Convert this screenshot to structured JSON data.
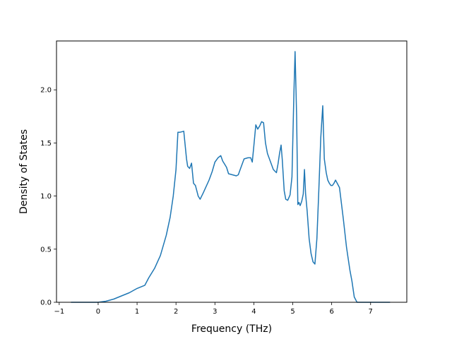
{
  "chart_data": {
    "type": "line",
    "title": "",
    "xlabel": "Frequency (THz)",
    "ylabel": "Density of States",
    "xlim": [
      -1.07,
      7.93
    ],
    "ylim": [
      0.0,
      2.46
    ],
    "xticks": [
      -1,
      0,
      1,
      2,
      3,
      4,
      5,
      6,
      7
    ],
    "xtick_labels": [
      "−1",
      "0",
      "1",
      "2",
      "3",
      "4",
      "5",
      "6",
      "7"
    ],
    "yticks": [
      0.0,
      0.5,
      1.0,
      1.5,
      2.0
    ],
    "ytick_labels": [
      "0.0",
      "0.5",
      "1.0",
      "1.5",
      "2.0"
    ],
    "grid": false,
    "line_color": "#1f77b4",
    "series": [
      {
        "x": [
          -0.7,
          -0.3,
          0.0,
          0.2,
          0.4,
          0.6,
          0.8,
          1.0,
          1.2,
          1.3,
          1.45,
          1.6,
          1.75,
          1.85,
          1.93,
          2.0,
          2.05,
          2.1,
          2.2,
          2.27,
          2.3,
          2.35,
          2.4,
          2.45,
          2.5,
          2.57,
          2.62,
          2.7,
          2.85,
          2.93,
          3.0,
          3.08,
          3.15,
          3.2,
          3.25,
          3.3,
          3.35,
          3.45,
          3.55,
          3.6,
          3.65,
          3.75,
          3.85,
          3.92,
          3.96,
          4.0,
          4.05,
          4.1,
          4.15,
          4.2,
          4.25,
          4.3,
          4.35,
          4.42,
          4.5,
          4.58,
          4.62,
          4.66,
          4.7,
          4.73,
          4.78,
          4.82,
          4.87,
          4.93,
          4.98,
          5.03,
          5.06,
          5.1,
          5.13,
          5.16,
          5.19,
          5.23,
          5.27,
          5.3,
          5.33,
          5.37,
          5.42,
          5.47,
          5.52,
          5.57,
          5.62,
          5.67,
          5.72,
          5.77,
          5.81,
          5.86,
          5.9,
          5.94,
          5.98,
          6.02,
          6.06,
          6.1,
          6.2,
          6.3,
          6.35,
          6.38,
          6.42,
          6.47,
          6.52,
          6.58,
          6.65,
          6.72,
          6.78,
          6.84,
          6.9,
          7.2,
          7.5
        ],
        "y": [
          0.0,
          0.0,
          0.0,
          0.01,
          0.03,
          0.06,
          0.09,
          0.13,
          0.16,
          0.23,
          0.32,
          0.44,
          0.63,
          0.8,
          1.0,
          1.25,
          1.6,
          1.6,
          1.61,
          1.35,
          1.28,
          1.26,
          1.31,
          1.12,
          1.1,
          1.0,
          0.97,
          1.03,
          1.15,
          1.23,
          1.32,
          1.36,
          1.38,
          1.33,
          1.3,
          1.27,
          1.21,
          1.2,
          1.19,
          1.2,
          1.25,
          1.35,
          1.36,
          1.36,
          1.32,
          1.47,
          1.67,
          1.63,
          1.66,
          1.7,
          1.69,
          1.5,
          1.4,
          1.33,
          1.25,
          1.22,
          1.3,
          1.4,
          1.48,
          1.35,
          1.05,
          0.97,
          0.96,
          1.01,
          1.18,
          1.98,
          2.36,
          1.75,
          0.92,
          0.94,
          0.91,
          0.95,
          1.02,
          1.25,
          1.02,
          0.86,
          0.6,
          0.46,
          0.38,
          0.36,
          0.6,
          1.05,
          1.55,
          1.85,
          1.35,
          1.22,
          1.15,
          1.12,
          1.1,
          1.1,
          1.12,
          1.15,
          1.08,
          0.78,
          0.62,
          0.52,
          0.42,
          0.3,
          0.2,
          0.05,
          0.0,
          0.0,
          0.0,
          0.0,
          0.0,
          0.0,
          0.0
        ]
      }
    ]
  }
}
